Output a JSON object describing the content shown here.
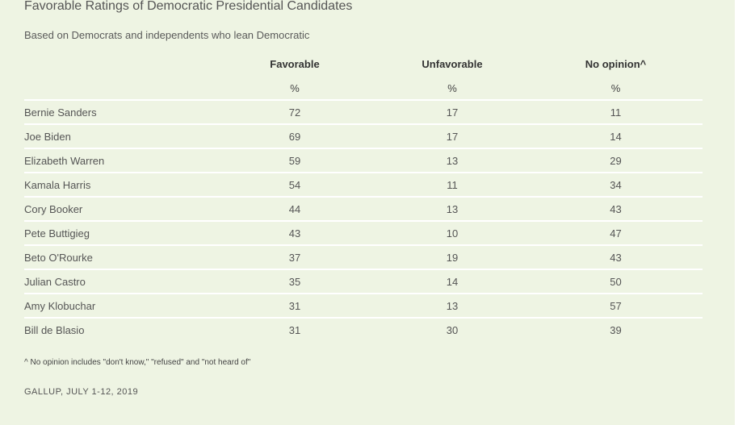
{
  "title": "Favorable Ratings of Democratic Presidential Candidates",
  "subtitle": "Based on Democrats and independents who lean Democratic",
  "footnote": "^ No opinion includes \"don't know,\" \"refused\" and \"not heard of\"",
  "source": "GALLUP, JULY 1-12, 2019",
  "colors": {
    "panel_background": "#eef4e3",
    "row_divider": "#ffffff",
    "text": "#555555"
  },
  "chart_data": {
    "type": "table",
    "title": "Favorable Ratings of Democratic Presidential Candidates",
    "subtitle": "Based on Democrats and independents who lean Democratic",
    "columns": [
      "Favorable",
      "Unfavorable",
      "No opinion^"
    ],
    "units": [
      "%",
      "%",
      "%"
    ],
    "rows": [
      {
        "name": "Bernie Sanders",
        "values": [
          72,
          17,
          11
        ]
      },
      {
        "name": "Joe Biden",
        "values": [
          69,
          17,
          14
        ]
      },
      {
        "name": "Elizabeth Warren",
        "values": [
          59,
          13,
          29
        ]
      },
      {
        "name": "Kamala Harris",
        "values": [
          54,
          11,
          34
        ]
      },
      {
        "name": "Cory Booker",
        "values": [
          44,
          13,
          43
        ]
      },
      {
        "name": "Pete Buttigieg",
        "values": [
          43,
          10,
          47
        ]
      },
      {
        "name": "Beto O'Rourke",
        "values": [
          37,
          19,
          43
        ]
      },
      {
        "name": "Julian Castro",
        "values": [
          35,
          14,
          50
        ]
      },
      {
        "name": "Amy Klobuchar",
        "values": [
          31,
          13,
          57
        ]
      },
      {
        "name": "Bill de Blasio",
        "values": [
          31,
          30,
          39
        ]
      }
    ]
  }
}
